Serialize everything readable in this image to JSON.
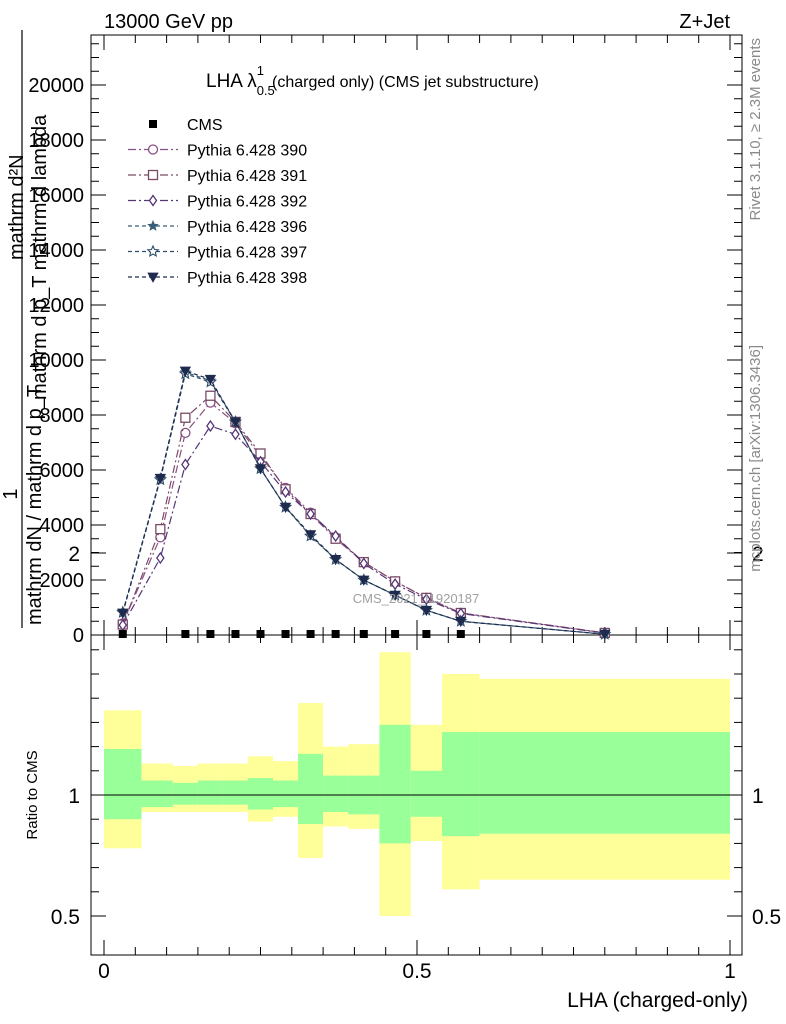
{
  "header": {
    "left": "13000 GeV pp",
    "right": "Z+Jet",
    "title_main": "LHA λ",
    "title_sup": "1",
    "title_sub": "0.5",
    "title_rest": "(charged only) (CMS jet substructure)"
  },
  "side_text": {
    "rivet": "Rivet 3.1.10, ≥ 2.3M events",
    "mcplots": "mcplots.cern.ch [arXiv:1306.3436]"
  },
  "watermark": "CMS_2021_I1920187",
  "axes": {
    "main_ylabel_numerator_1": "mathrm d²N",
    "main_ylabel_numerator_2": "mathrm d p_T mathrm d lambda",
    "main_ylabel_one": "1",
    "main_ylabel_denominator": "mathrm dN / mathrm d p_T",
    "ratio_ylabel": "Ratio to CMS",
    "xlabel": "LHA (charged-only)"
  },
  "colors": {
    "p390": "#8a4f82",
    "p391": "#7a4a66",
    "p392": "#553578",
    "p396": "#3a5e78",
    "p397": "#2e4e6a",
    "p398": "#1e2a4e",
    "band_inner": "#99ff99",
    "band_outer": "#ffff99"
  },
  "chart_data": {
    "type": "line",
    "x": [
      0.03,
      0.09,
      0.13,
      0.17,
      0.21,
      0.25,
      0.29,
      0.33,
      0.37,
      0.415,
      0.465,
      0.515,
      0.57,
      0.8
    ],
    "main_ylim": [
      0,
      22000
    ],
    "main_yticks": [
      "0",
      "2000",
      "4000",
      "6000",
      "8000",
      "10000",
      "12000",
      "14000",
      "16000",
      "18000",
      "20000"
    ],
    "main_ytick_values": [
      0,
      2000,
      4000,
      6000,
      8000,
      10000,
      12000,
      14000,
      16000,
      18000,
      20000
    ],
    "xlim": [
      0,
      1
    ],
    "xticks": [
      "0",
      "0.5",
      "1"
    ],
    "xtick_values": [
      0,
      0.5,
      1
    ],
    "ratio_ylim": [
      0.4,
      2.35
    ],
    "ratio_yticks": [
      "0.5",
      "1",
      "2"
    ],
    "ratio_ytick_values": [
      0.5,
      1,
      2
    ],
    "cms": {
      "name": "CMS",
      "x": [
        0.03,
        0.13,
        0.17,
        0.21,
        0.25,
        0.29,
        0.33,
        0.37,
        0.415,
        0.465,
        0.515,
        0.57
      ],
      "values": [
        0,
        0,
        0,
        0,
        0,
        0,
        0,
        0,
        0,
        0,
        0,
        0
      ]
    },
    "series": [
      {
        "name": "Pythia 6.428 390",
        "marker": "circle",
        "dash": "8,3,2,3",
        "values": [
          420,
          3550,
          7350,
          8450,
          7700,
          6500,
          5350,
          4450,
          3550,
          2650,
          1950,
          1350,
          800,
          75
        ]
      },
      {
        "name": "Pythia 6.428 391",
        "marker": "square",
        "dash": "8,3,2,3",
        "values": [
          380,
          3850,
          7900,
          8700,
          7750,
          6600,
          5300,
          4400,
          3500,
          2650,
          1950,
          1350,
          800,
          75
        ]
      },
      {
        "name": "Pythia 6.428 392",
        "marker": "diamond",
        "dash": "8,3,2,3",
        "values": [
          360,
          2800,
          6200,
          7600,
          7300,
          6300,
          5200,
          4400,
          3600,
          2600,
          1850,
          1300,
          780,
          70
        ]
      },
      {
        "name": "Pythia 6.428 396",
        "marker": "star",
        "dash": "4,3",
        "values": [
          850,
          5700,
          9550,
          9250,
          7750,
          6050,
          4650,
          3600,
          2750,
          2000,
          1450,
          900,
          500,
          30
        ]
      },
      {
        "name": "Pythia 6.428 397",
        "marker": "staropen",
        "dash": "4,3",
        "values": [
          820,
          5650,
          9500,
          9200,
          7750,
          6050,
          4650,
          3600,
          2750,
          2000,
          1450,
          900,
          500,
          30
        ]
      },
      {
        "name": "Pythia 6.428 398",
        "marker": "tridown",
        "dash": "4,3",
        "values": [
          800,
          5700,
          9600,
          9300,
          7750,
          6050,
          4650,
          3650,
          2750,
          2000,
          1450,
          900,
          500,
          30
        ]
      }
    ],
    "ratio_bands": [
      {
        "x0": 0.0,
        "x1": 0.06,
        "inner_lo": 0.9,
        "inner_hi": 1.19,
        "outer_lo": 0.78,
        "outer_hi": 1.35
      },
      {
        "x0": 0.06,
        "x1": 0.11,
        "inner_lo": 0.95,
        "inner_hi": 1.06,
        "outer_lo": 0.93,
        "outer_hi": 1.13
      },
      {
        "x0": 0.11,
        "x1": 0.15,
        "inner_lo": 0.96,
        "inner_hi": 1.05,
        "outer_lo": 0.93,
        "outer_hi": 1.12
      },
      {
        "x0": 0.15,
        "x1": 0.19,
        "inner_lo": 0.96,
        "inner_hi": 1.06,
        "outer_lo": 0.93,
        "outer_hi": 1.13
      },
      {
        "x0": 0.19,
        "x1": 0.23,
        "inner_lo": 0.96,
        "inner_hi": 1.06,
        "outer_lo": 0.93,
        "outer_hi": 1.13
      },
      {
        "x0": 0.23,
        "x1": 0.27,
        "inner_lo": 0.94,
        "inner_hi": 1.07,
        "outer_lo": 0.89,
        "outer_hi": 1.16
      },
      {
        "x0": 0.27,
        "x1": 0.31,
        "inner_lo": 0.95,
        "inner_hi": 1.06,
        "outer_lo": 0.91,
        "outer_hi": 1.14
      },
      {
        "x0": 0.31,
        "x1": 0.35,
        "inner_lo": 0.88,
        "inner_hi": 1.17,
        "outer_lo": 0.74,
        "outer_hi": 1.38
      },
      {
        "x0": 0.35,
        "x1": 0.39,
        "inner_lo": 0.93,
        "inner_hi": 1.08,
        "outer_lo": 0.87,
        "outer_hi": 1.2
      },
      {
        "x0": 0.39,
        "x1": 0.44,
        "inner_lo": 0.92,
        "inner_hi": 1.08,
        "outer_lo": 0.86,
        "outer_hi": 1.21
      },
      {
        "x0": 0.44,
        "x1": 0.49,
        "inner_lo": 0.8,
        "inner_hi": 1.29,
        "outer_lo": 0.5,
        "outer_hi": 1.59
      },
      {
        "x0": 0.49,
        "x1": 0.54,
        "inner_lo": 0.91,
        "inner_hi": 1.1,
        "outer_lo": 0.81,
        "outer_hi": 1.29
      },
      {
        "x0": 0.54,
        "x1": 0.6,
        "inner_lo": 0.83,
        "inner_hi": 1.26,
        "outer_lo": 0.61,
        "outer_hi": 1.5
      },
      {
        "x0": 0.6,
        "x1": 1.0,
        "inner_lo": 0.84,
        "inner_hi": 1.26,
        "outer_lo": 0.65,
        "outer_hi": 1.48
      }
    ],
    "legend_position": "top-left"
  }
}
